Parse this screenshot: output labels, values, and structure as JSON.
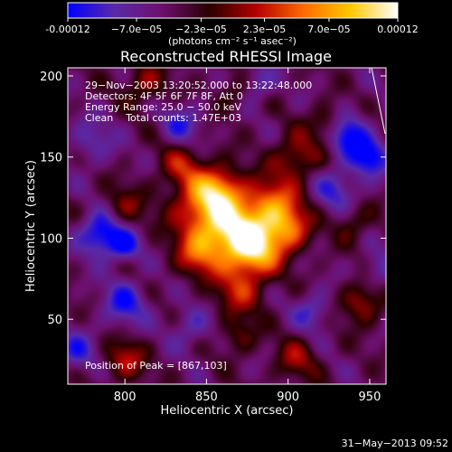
{
  "colorbar": {
    "tick_labels": [
      "-0.00012",
      "−7.0e−05",
      "−2.3e−05",
      "2.3e−05",
      "7.0e−05",
      "0.00012"
    ],
    "tick_values": [
      -0.00012,
      -7e-05,
      -2.3e-05,
      2.3e-05,
      7e-05,
      0.00012
    ],
    "units_label": "(photons cm⁻² s⁻¹ asec⁻²)",
    "colors": [
      "#0000ff",
      "#5a2aa8",
      "#6d0f6e",
      "#2a0000",
      "#b40000",
      "#ff6a00",
      "#ffc800",
      "#ffffff"
    ]
  },
  "chart_data": {
    "type": "heatmap",
    "title": "Reconstructed RHESSI Image",
    "xlabel": "Heliocentric X (arcsec)",
    "ylabel": "Heliocentric Y (arcsec)",
    "xlim": [
      765,
      960
    ],
    "ylim": [
      10,
      205
    ],
    "x_ticks": [
      800,
      850,
      900,
      950
    ],
    "y_ticks": [
      50,
      100,
      150,
      200
    ],
    "value_range": [
      -0.00012,
      0.00012
    ],
    "peak": [
      867,
      103
    ],
    "blobs": [
      {
        "x": 867,
        "y": 103,
        "amp": 0.00012,
        "s": 13
      },
      {
        "x": 848,
        "y": 118,
        "amp": 9e-05,
        "s": 14
      },
      {
        "x": 880,
        "y": 92,
        "amp": 0.0001,
        "s": 11
      },
      {
        "x": 890,
        "y": 120,
        "amp": 9e-05,
        "s": 12
      },
      {
        "x": 900,
        "y": 105,
        "amp": 8e-05,
        "s": 10
      },
      {
        "x": 858,
        "y": 130,
        "amp": 8e-05,
        "s": 10
      },
      {
        "x": 845,
        "y": 90,
        "amp": 7e-05,
        "s": 10
      },
      {
        "x": 870,
        "y": 68,
        "amp": 6e-05,
        "s": 11
      },
      {
        "x": 905,
        "y": 150,
        "amp": 6e-05,
        "s": 10
      },
      {
        "x": 835,
        "y": 145,
        "amp": 5e-05,
        "s": 10
      },
      {
        "x": 925,
        "y": 170,
        "amp": 6e-05,
        "s": 8
      },
      {
        "x": 800,
        "y": 120,
        "amp": 4e-05,
        "s": 9
      },
      {
        "x": 945,
        "y": 60,
        "amp": 6e-05,
        "s": 9
      },
      {
        "x": 940,
        "y": 110,
        "amp": 4e-05,
        "s": 8
      },
      {
        "x": 800,
        "y": 25,
        "amp": 6e-05,
        "s": 9
      },
      {
        "x": 905,
        "y": 25,
        "amp": 5e-05,
        "s": 9
      },
      {
        "x": 870,
        "y": 40,
        "amp": 4e-05,
        "s": 8
      },
      {
        "x": 812,
        "y": 195,
        "amp": 5e-05,
        "s": 9
      },
      {
        "x": 868,
        "y": 190,
        "amp": 4e-05,
        "s": 8
      },
      {
        "x": 935,
        "y": 165,
        "amp": -9e-05,
        "s": 9
      },
      {
        "x": 950,
        "y": 150,
        "amp": -8e-05,
        "s": 8
      },
      {
        "x": 785,
        "y": 102,
        "amp": -9e-05,
        "s": 9
      },
      {
        "x": 800,
        "y": 95,
        "amp": -6e-05,
        "s": 7
      },
      {
        "x": 800,
        "y": 60,
        "amp": -6e-05,
        "s": 10
      },
      {
        "x": 835,
        "y": 170,
        "amp": -5e-05,
        "s": 9
      },
      {
        "x": 930,
        "y": 130,
        "amp": -5e-05,
        "s": 10
      },
      {
        "x": 915,
        "y": 55,
        "amp": -5e-05,
        "s": 8
      },
      {
        "x": 780,
        "y": 160,
        "amp": -4e-05,
        "s": 10
      },
      {
        "x": 880,
        "y": 195,
        "amp": -5e-05,
        "s": 8
      },
      {
        "x": 840,
        "y": 45,
        "amp": -4e-05,
        "s": 9
      },
      {
        "x": 770,
        "y": 30,
        "amp": -5e-05,
        "s": 9
      },
      {
        "x": 955,
        "y": 80,
        "amp": -4e-05,
        "s": 8
      }
    ]
  },
  "annotations": {
    "time_range": "29−Nov−2003 13:20:52.000 to 13:22:48.000",
    "detectors": "Detectors: 4F 5F 6F 7F 8F, Att 0",
    "energy_range": "Energy Range: 25.0 − 50.0 keV",
    "clean_counts": "Clean    Total counts: 1.47E+03",
    "peak_position": "Position of Peak = [867,103]"
  },
  "footer": {
    "date_stamp": "31−May−2013 09:52"
  }
}
